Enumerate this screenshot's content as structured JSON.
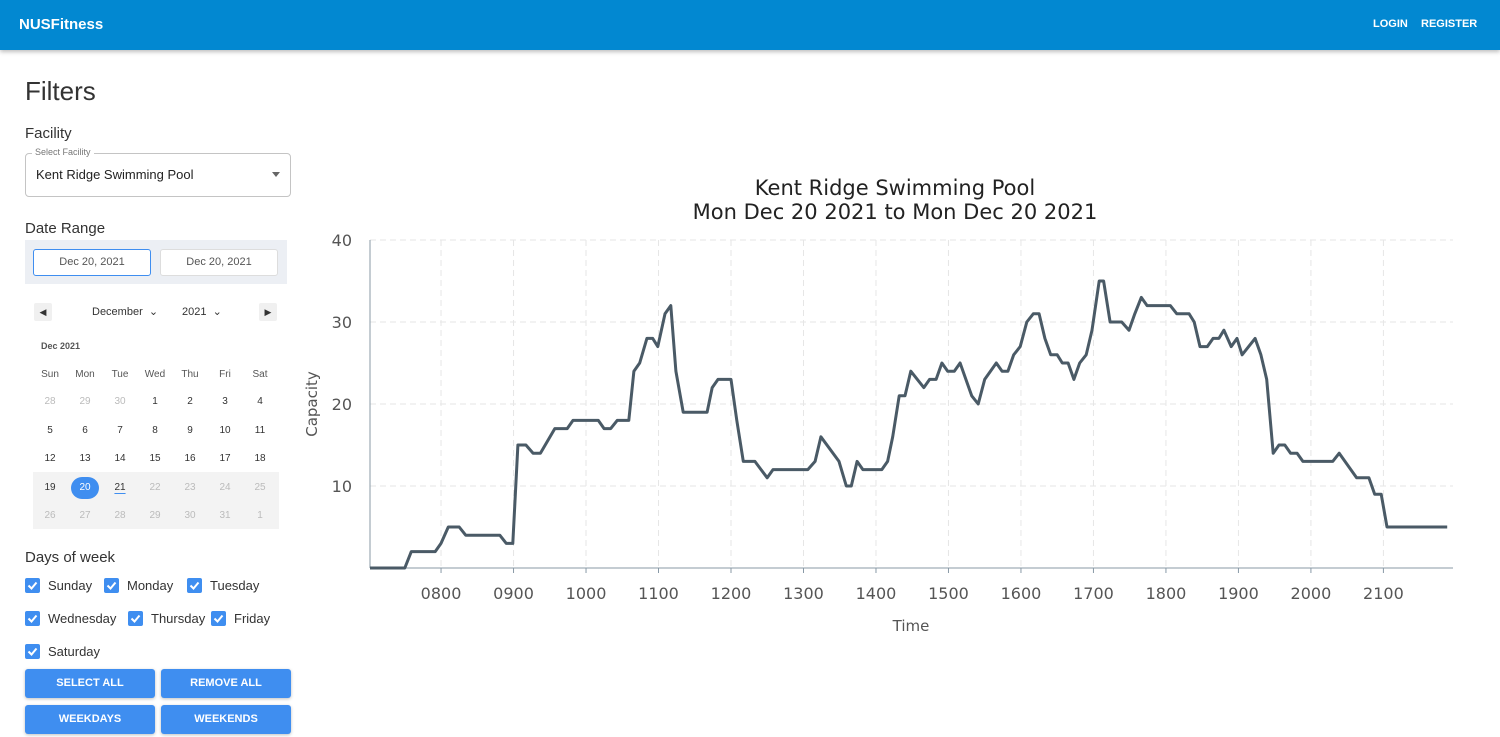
{
  "header": {
    "title": "NUSFitness",
    "links": [
      "LOGIN",
      "REGISTER"
    ]
  },
  "filters": {
    "title": "Filters",
    "facility_label": "Facility",
    "select_label": "Select Facility",
    "select_value": "Kent Ridge Swimming Pool",
    "date_range_label": "Date Range",
    "start_date": "Dec 20, 2021",
    "end_date": "Dec 20, 2021",
    "calendar": {
      "month": "December",
      "year": "2021",
      "caption": "Dec 2021",
      "weekdays": [
        "Sun",
        "Mon",
        "Tue",
        "Wed",
        "Thu",
        "Fri",
        "Sat"
      ],
      "weeks": [
        [
          28,
          29,
          30,
          1,
          2,
          3,
          4
        ],
        [
          5,
          6,
          7,
          8,
          9,
          10,
          11
        ],
        [
          12,
          13,
          14,
          15,
          16,
          17,
          18
        ],
        [
          19,
          20,
          21,
          22,
          23,
          24,
          25
        ],
        [
          26,
          27,
          28,
          29,
          30,
          31,
          1
        ]
      ]
    },
    "days_label": "Days of week",
    "days": [
      "Sunday",
      "Monday",
      "Tuesday",
      "Wednesday",
      "Thursday",
      "Friday",
      "Saturday"
    ],
    "buttons": [
      "SELECT ALL",
      "REMOVE ALL",
      "WEEKDAYS",
      "WEEKENDS"
    ]
  },
  "chart_data": {
    "type": "line",
    "title": "Kent Ridge Swimming Pool",
    "subtitle": "Mon Dec 20 2021 to Mon Dec 20 2021",
    "x_label": "Time",
    "y_label": "Capacity",
    "color": "#4a5a66",
    "grid": true,
    "xlim": [
      7.02,
      21.96
    ],
    "ylim": [
      0,
      40
    ],
    "xticks": [
      {
        "value": 8,
        "label": "0800"
      },
      {
        "value": 9,
        "label": "0900"
      },
      {
        "value": 10,
        "label": "1000"
      },
      {
        "value": 11,
        "label": "1100"
      },
      {
        "value": 12,
        "label": "1200"
      },
      {
        "value": 13,
        "label": "1300"
      },
      {
        "value": 14,
        "label": "1400"
      },
      {
        "value": 15,
        "label": "1500"
      },
      {
        "value": 16,
        "label": "1600"
      },
      {
        "value": 17,
        "label": "1700"
      },
      {
        "value": 18,
        "label": "1800"
      },
      {
        "value": 19,
        "label": "1900"
      },
      {
        "value": 20,
        "label": "2000"
      },
      {
        "value": 21,
        "label": "2100"
      }
    ],
    "yticks": [
      10,
      20,
      30,
      40
    ],
    "x": [
      7.02,
      7.5,
      7.59,
      7.92,
      8.0,
      8.1,
      8.25,
      8.34,
      8.81,
      8.9,
      8.99,
      9.06,
      9.17,
      9.27,
      9.37,
      9.57,
      9.74,
      9.82,
      10.17,
      10.25,
      10.34,
      10.43,
      10.59,
      10.66,
      10.74,
      10.84,
      10.92,
      10.99,
      11.09,
      11.17,
      11.24,
      11.34,
      11.67,
      11.74,
      11.82,
      12.0,
      12.08,
      12.17,
      12.33,
      12.5,
      12.58,
      13.06,
      13.16,
      13.24,
      13.49,
      13.59,
      13.66,
      13.74,
      13.82,
      14.08,
      14.16,
      14.23,
      14.32,
      14.4,
      14.48,
      14.66,
      14.74,
      14.83,
      14.91,
      14.99,
      15.08,
      15.16,
      15.32,
      15.41,
      15.5,
      15.66,
      15.74,
      15.82,
      15.9,
      15.99,
      16.08,
      16.17,
      16.25,
      16.33,
      16.41,
      16.5,
      16.57,
      16.65,
      16.73,
      16.81,
      16.9,
      16.98,
      17.08,
      17.14,
      17.23,
      17.39,
      17.49,
      17.57,
      17.66,
      17.74,
      18.06,
      18.15,
      18.32,
      18.39,
      18.47,
      18.57,
      18.65,
      18.73,
      18.8,
      18.9,
      18.98,
      19.05,
      19.23,
      19.31,
      19.39,
      19.48,
      19.56,
      19.64,
      19.72,
      19.81,
      19.89,
      20.3,
      20.39,
      20.63,
      20.8,
      20.88,
      20.97,
      21.05,
      21.88
    ],
    "values": [
      0,
      0,
      2,
      2,
      3,
      5,
      5,
      4,
      4,
      3,
      3,
      15,
      15,
      14,
      14,
      17,
      17,
      18,
      18,
      17,
      17,
      18,
      18,
      24,
      25,
      28,
      28,
      27,
      31,
      32,
      24,
      19,
      19,
      22,
      23,
      23,
      18,
      13,
      13,
      11,
      12,
      12,
      13,
      16,
      13,
      10,
      10,
      13,
      12,
      12,
      13,
      16,
      21,
      21,
      24,
      22,
      23,
      23,
      25,
      24,
      24,
      25,
      21,
      20,
      23,
      25,
      24,
      24,
      26,
      27,
      30,
      31,
      31,
      28,
      26,
      26,
      25,
      25,
      23,
      25,
      26,
      29,
      35,
      35,
      30,
      30,
      29,
      31,
      33,
      32,
      32,
      31,
      31,
      30,
      27,
      27,
      28,
      28,
      29,
      27,
      28,
      26,
      28,
      26,
      23,
      14,
      15,
      15,
      14,
      14,
      13,
      13,
      14,
      11,
      11,
      9,
      9,
      5,
      5
    ]
  }
}
